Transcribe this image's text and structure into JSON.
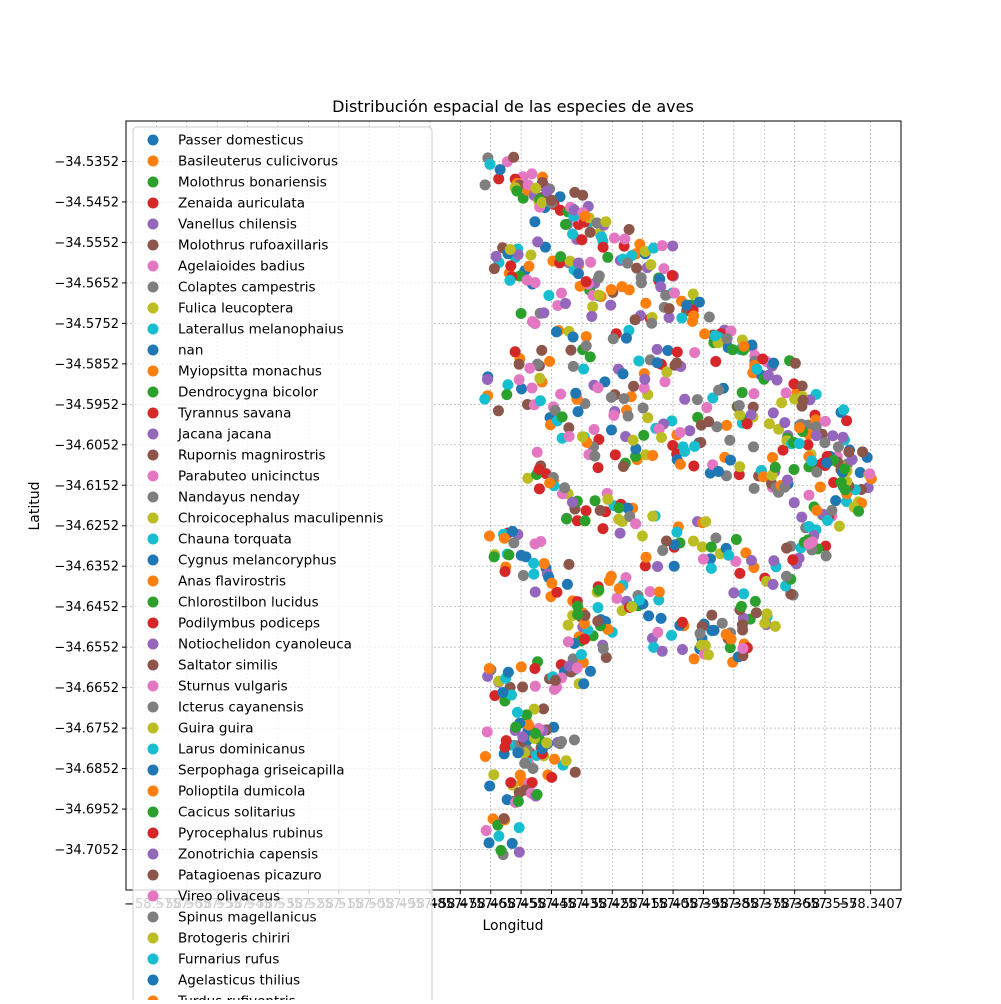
{
  "chart_data": {
    "type": "scatter",
    "title": "Distribución espacial de las especies de aves",
    "xlabel": "Longitud",
    "ylabel": "Latitud",
    "grid": true,
    "legend_position": "upper-left",
    "xlim": [
      -58.5857,
      -58.3307
    ],
    "ylim": [
      -34.7152,
      -34.5252
    ],
    "y_ticks": [
      "−34.5352",
      "−34.5452",
      "−34.5552",
      "−34.5652",
      "−34.5752",
      "−34.5852",
      "−34.5952",
      "−34.6052",
      "−34.6152",
      "−34.6252",
      "−34.6352",
      "−34.6452",
      "−34.6552",
      "−34.6652",
      "−34.6752",
      "−34.6852",
      "−34.6952",
      "−34.7052"
    ],
    "x_ticks": [
      "−58.5757",
      "−58.5657",
      "−58.5557",
      "−58.5457",
      "−58.5357",
      "−58.5257",
      "−58.5157",
      "−58.5057",
      "−58.4957",
      "−58.4857",
      "−58.4757",
      "−58.4657",
      "−58.4557",
      "−58.4457",
      "−58.4357",
      "−58.4257",
      "−58.4157",
      "−58.4057",
      "−58.3957",
      "−58.3857",
      "−58.3757",
      "−58.3657",
      "−58.3557",
      "−58.3407"
    ],
    "palette": [
      "#1f77b4",
      "#ff7f0e",
      "#2ca02c",
      "#d62728",
      "#9467bd",
      "#8c564b",
      "#e377c2",
      "#7f7f7f",
      "#bcbd22",
      "#17becf"
    ],
    "legend_entries": [
      "Passer domesticus",
      "Basileuterus culicivorus",
      "Molothrus bonariensis",
      "Zenaida auriculata",
      "Vanellus chilensis",
      "Molothrus rufoaxillaris",
      "Agelaioides badius",
      "Colaptes campestris",
      "Fulica leucoptera",
      "Laterallus melanophaius",
      "nan",
      "Myiopsitta monachus",
      "Dendrocygna bicolor",
      "Tyrannus savana",
      "Jacana jacana",
      "Rupornis magnirostris",
      "Parabuteo unicinctus",
      "Nandayus nenday",
      "Chroicocephalus maculipennis",
      "Chauna torquata",
      "Cygnus melancoryphus",
      "Anas flavirostris",
      "Chlorostilbon lucidus",
      "Podilymbus podiceps",
      "Notiochelidon cyanoleuca",
      "Saltator similis",
      "Sturnus vulgaris",
      "Icterus cayanensis",
      "Guira guira",
      "Larus dominicanus",
      "Serpophaga griseicapilla",
      "Polioptila dumicola",
      "Cacicus solitarius",
      "Pyrocephalus rubinus",
      "Zonotrichia capensis",
      "Patagioenas picazuro",
      "Vireo olivaceus",
      "Spinus magellanicus",
      "Brotogeris chiriri",
      "Furnarius rufus",
      "Agelasticus thilius",
      "Turdus rufiventris"
    ],
    "series_points": [
      {
        "x": -58.4626,
        "y": -34.5372
      },
      {
        "x": -58.4535,
        "y": -34.5423
      },
      {
        "x": -58.4496,
        "y": -34.5446
      },
      {
        "x": -58.4449,
        "y": -34.5458
      },
      {
        "x": -58.4382,
        "y": -34.5472
      },
      {
        "x": -58.433,
        "y": -34.5527
      },
      {
        "x": -58.425,
        "y": -34.5541
      },
      {
        "x": -58.4207,
        "y": -34.5603
      },
      {
        "x": -58.413,
        "y": -34.5607
      },
      {
        "x": -58.4059,
        "y": -34.5677
      },
      {
        "x": -58.4012,
        "y": -34.5707
      },
      {
        "x": -58.3953,
        "y": -34.5778
      },
      {
        "x": -58.3861,
        "y": -34.5817
      },
      {
        "x": -58.3762,
        "y": -34.584
      },
      {
        "x": -58.3715,
        "y": -34.5892
      },
      {
        "x": -58.3629,
        "y": -34.5942
      },
      {
        "x": -58.3556,
        "y": -34.5994
      },
      {
        "x": -58.3513,
        "y": -34.6057
      },
      {
        "x": -58.3485,
        "y": -34.6117
      },
      {
        "x": -58.3457,
        "y": -34.6163
      },
      {
        "x": -58.3522,
        "y": -34.619
      },
      {
        "x": -58.3584,
        "y": -34.6214
      },
      {
        "x": -58.3613,
        "y": -34.6287
      },
      {
        "x": -58.3663,
        "y": -34.6336
      },
      {
        "x": -58.3728,
        "y": -34.6397
      },
      {
        "x": -58.3783,
        "y": -34.6467
      },
      {
        "x": -58.3827,
        "y": -34.6555
      },
      {
        "x": -58.3895,
        "y": -34.6493
      },
      {
        "x": -58.3964,
        "y": -34.6547
      },
      {
        "x": -58.4062,
        "y": -34.6523
      },
      {
        "x": -58.4156,
        "y": -34.6445
      },
      {
        "x": -58.4234,
        "y": -34.6407
      },
      {
        "x": -58.4296,
        "y": -34.6499
      },
      {
        "x": -58.4348,
        "y": -34.6532
      },
      {
        "x": -58.4398,
        "y": -34.6599
      },
      {
        "x": -58.4444,
        "y": -34.6634
      },
      {
        "x": -58.4499,
        "y": -34.6753
      },
      {
        "x": -58.4535,
        "y": -34.6807
      },
      {
        "x": -58.4585,
        "y": -34.6893
      },
      {
        "x": -58.463,
        "y": -34.7019
      },
      {
        "x": -58.4599,
        "y": -34.6614
      },
      {
        "x": -58.4612,
        "y": -34.6283
      },
      {
        "x": -58.4604,
        "y": -34.5928
      },
      {
        "x": -58.4591,
        "y": -34.561
      },
      {
        "x": -58.4482,
        "y": -34.5726
      },
      {
        "x": -58.4393,
        "y": -34.5818
      },
      {
        "x": -58.4304,
        "y": -34.5911
      },
      {
        "x": -58.4205,
        "y": -34.5981
      },
      {
        "x": -58.4095,
        "y": -34.6034
      },
      {
        "x": -58.3986,
        "y": -34.6056
      },
      {
        "x": -58.3868,
        "y": -34.609
      },
      {
        "x": -58.376,
        "y": -34.6131
      },
      {
        "x": -58.3659,
        "y": -34.6113
      },
      {
        "x": -58.4498,
        "y": -34.6113
      },
      {
        "x": -58.4388,
        "y": -34.6194
      },
      {
        "x": -58.4297,
        "y": -34.6214
      },
      {
        "x": -58.418,
        "y": -34.6247
      },
      {
        "x": -58.4091,
        "y": -34.6313
      },
      {
        "x": -58.399,
        "y": -34.629
      },
      {
        "x": -58.3874,
        "y": -34.6325
      },
      {
        "x": -58.4541,
        "y": -34.6329
      },
      {
        "x": -58.4456,
        "y": -34.6394
      },
      {
        "x": -58.4371,
        "y": -34.6451
      },
      {
        "x": -58.4247,
        "y": -34.6077
      },
      {
        "x": -58.415,
        "y": -34.589
      },
      {
        "x": -58.4045,
        "y": -34.585
      },
      {
        "x": -58.3946,
        "y": -34.596
      },
      {
        "x": -58.3839,
        "y": -34.5955
      },
      {
        "x": -58.374,
        "y": -34.6
      },
      {
        "x": -58.3642,
        "y": -34.6049
      },
      {
        "x": -58.3551,
        "y": -34.6097
      },
      {
        "x": -58.4531,
        "y": -34.5611
      },
      {
        "x": -58.4427,
        "y": -34.5587
      },
      {
        "x": -58.4343,
        "y": -34.5649
      },
      {
        "x": -58.4262,
        "y": -34.5707
      },
      {
        "x": -58.4182,
        "y": -34.5743
      },
      {
        "x": -58.4528,
        "y": -34.5863
      },
      {
        "x": -58.4445,
        "y": -34.5967
      },
      {
        "x": -58.4355,
        "y": -34.6032
      },
      {
        "x": -58.4569,
        "y": -34.6713
      },
      {
        "x": -58.4487,
        "y": -34.6803
      },
      {
        "x": -58.4447,
        "y": -34.6829
      },
      {
        "x": -58.4566,
        "y": -34.6933
      },
      {
        "x": -58.4606,
        "y": -34.6783
      }
    ]
  }
}
